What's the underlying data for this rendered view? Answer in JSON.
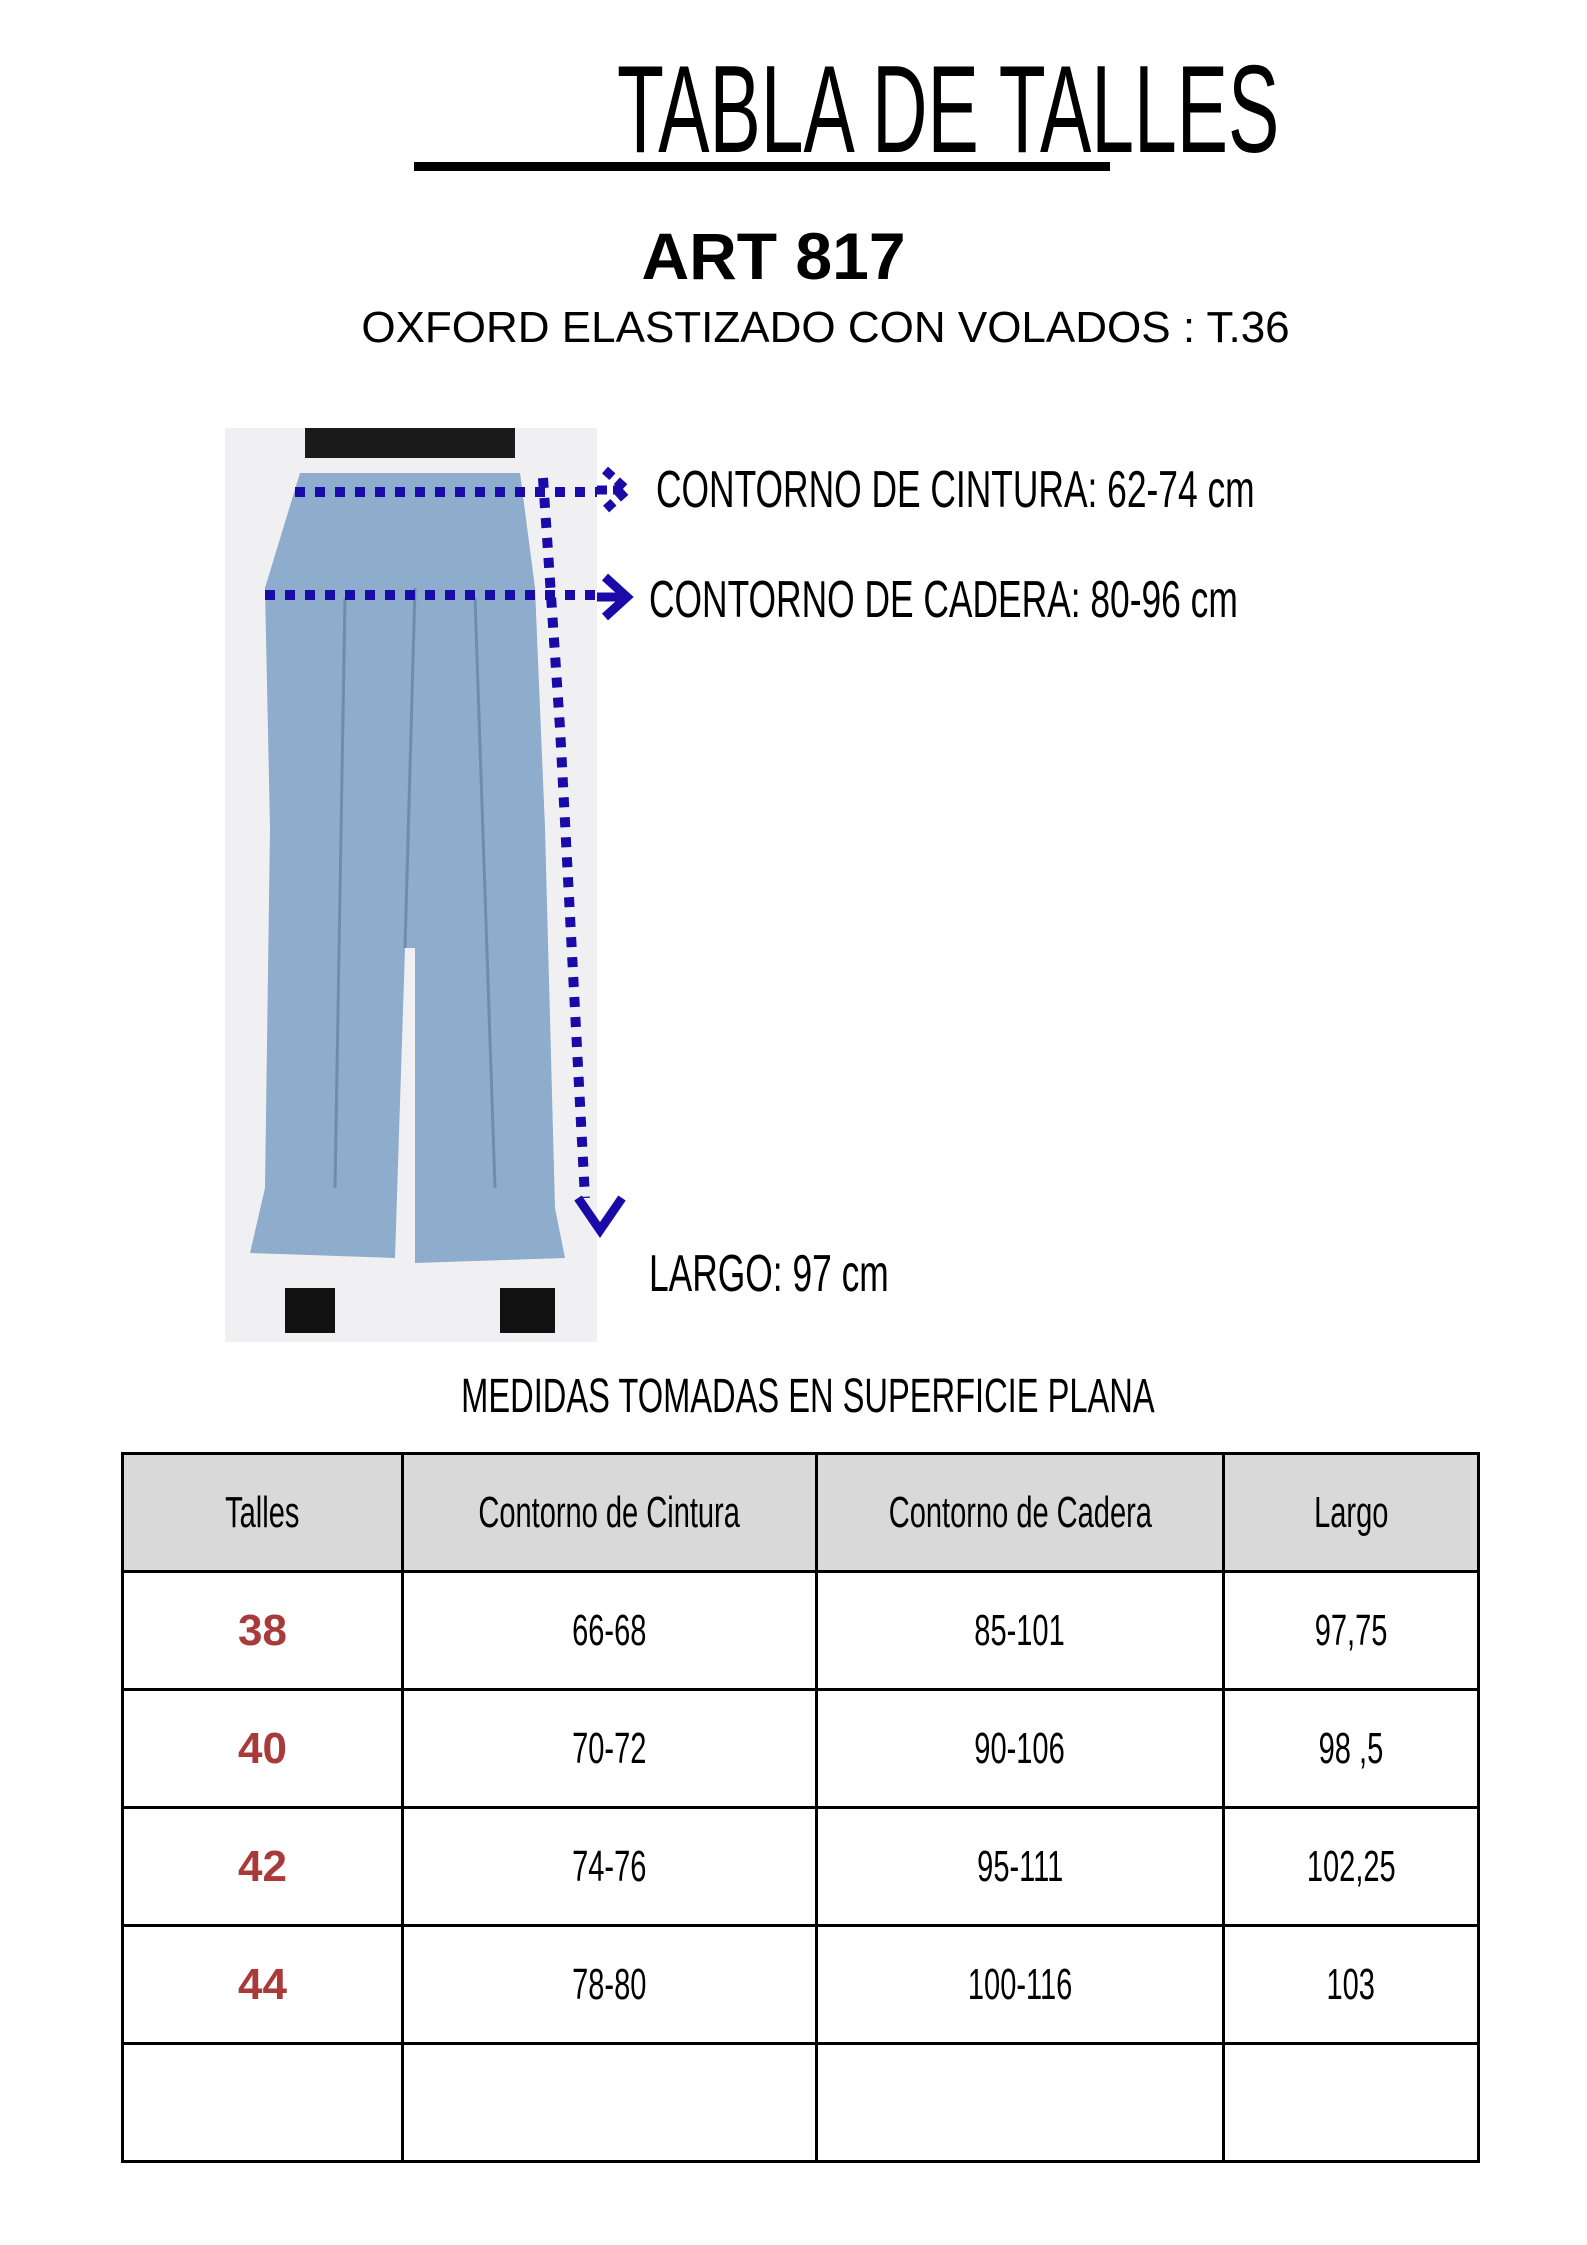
{
  "title": "TABLA DE TALLES",
  "article": "ART 817",
  "subtitle": "OXFORD ELASTIZADO CON VOLADOS : T.36",
  "measures": {
    "cintura": "CONTORNO DE CINTURA: 62-74 cm",
    "cadera": "CONTORNO DE CADERA: 80-96 cm",
    "largo": "LARGO: 97 cm"
  },
  "note": "MEDIDAS TOMADAS EN SUPERFICIE PLANA",
  "colors": {
    "arrow": "#1a0aa8",
    "size_text": "#a83a3a",
    "header_bg": "#d9d9d9"
  },
  "table": {
    "headers": [
      "Talles",
      "Contorno de Cintura",
      "Contorno de Cadera",
      "Largo"
    ],
    "rows": [
      [
        "38",
        "66-68",
        "85-101",
        "97,75"
      ],
      [
        "40",
        "70-72",
        "90-106",
        "98 ,5"
      ],
      [
        "42",
        "74-76",
        "95-111",
        "102,25"
      ],
      [
        "44",
        "78-80",
        "100-116",
        "103"
      ],
      [
        "",
        "",
        "",
        ""
      ]
    ]
  }
}
